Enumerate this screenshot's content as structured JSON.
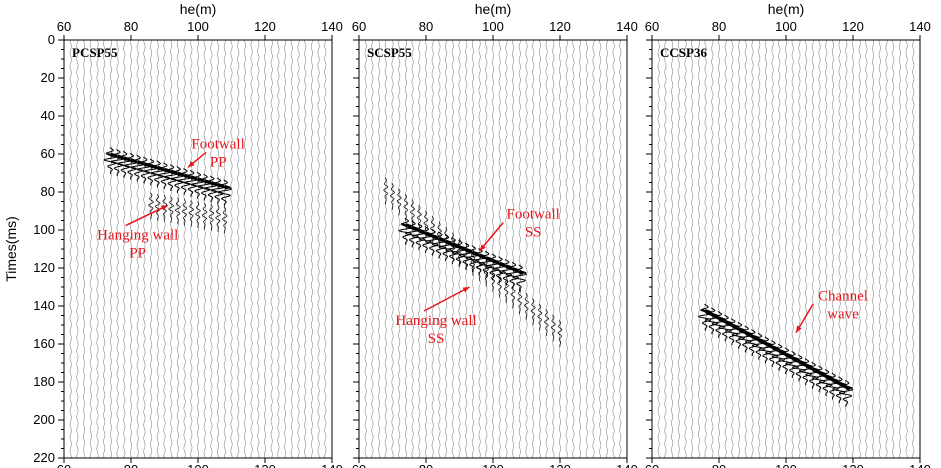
{
  "chart_data": [
    {
      "type": "line",
      "panel_label": "PCSP55",
      "xlabel": "he(m)",
      "ylabel": "Times(ms)",
      "xlim": [
        60,
        140
      ],
      "ylim": [
        0,
        220
      ],
      "y_inverted": true,
      "x_ticks": [
        "60",
        "80",
        "100",
        "120",
        "140"
      ],
      "y_ticks": [
        "0",
        "20",
        "40",
        "60",
        "80",
        "100",
        "120",
        "140",
        "160",
        "180",
        "200",
        "220"
      ],
      "trace_spacing_m": 2,
      "events": [
        {
          "x": [
            73,
            109
          ],
          "y": [
            60,
            78
          ],
          "strength": 1.0
        },
        {
          "x": [
            85,
            109
          ],
          "y": [
            84,
            92
          ],
          "strength": 0.35
        }
      ],
      "annotations": [
        {
          "lines": [
            "Footwall",
            "PP"
          ],
          "x": 106,
          "y": 57,
          "arrow_to": [
            97,
            67
          ]
        },
        {
          "lines": [
            "Hanging wall",
            "PP"
          ],
          "x": 82,
          "y": 105,
          "arrow_to": [
            91,
            87
          ]
        }
      ]
    },
    {
      "type": "line",
      "panel_label": "SCSP55",
      "xlabel": "he(m)",
      "ylabel": "",
      "xlim": [
        60,
        140
      ],
      "ylim": [
        0,
        220
      ],
      "y_inverted": true,
      "x_ticks": [
        "60",
        "80",
        "100",
        "120",
        "140"
      ],
      "y_ticks": [],
      "trace_spacing_m": 2,
      "events": [
        {
          "x": [
            73,
            109
          ],
          "y": [
            97,
            123
          ],
          "strength": 1.0
        },
        {
          "x": [
            67,
            121
          ],
          "y": [
            75,
            153
          ],
          "strength": 0.3
        }
      ],
      "annotations": [
        {
          "lines": [
            "Footwall",
            "SS"
          ],
          "x": 112,
          "y": 94,
          "arrow_to": [
            96,
            111
          ]
        },
        {
          "lines": [
            "Hanging wall",
            "SS"
          ],
          "x": 83,
          "y": 150,
          "arrow_to": [
            93,
            130
          ]
        }
      ]
    },
    {
      "type": "line",
      "panel_label": "CCSP36",
      "xlabel": "he(m)",
      "ylabel": "",
      "xlim": [
        60,
        140
      ],
      "ylim": [
        0,
        220
      ],
      "y_inverted": true,
      "x_ticks": [
        "60",
        "80",
        "100",
        "120",
        "140"
      ],
      "y_ticks": [],
      "trace_spacing_m": 2,
      "events": [
        {
          "x": [
            75,
            119
          ],
          "y": [
            142,
            184
          ],
          "strength": 1.0
        }
      ],
      "annotations": [
        {
          "lines": [
            "Channel",
            "wave"
          ],
          "x": 117,
          "y": 137,
          "arrow_to": [
            103,
            154
          ]
        }
      ]
    }
  ]
}
